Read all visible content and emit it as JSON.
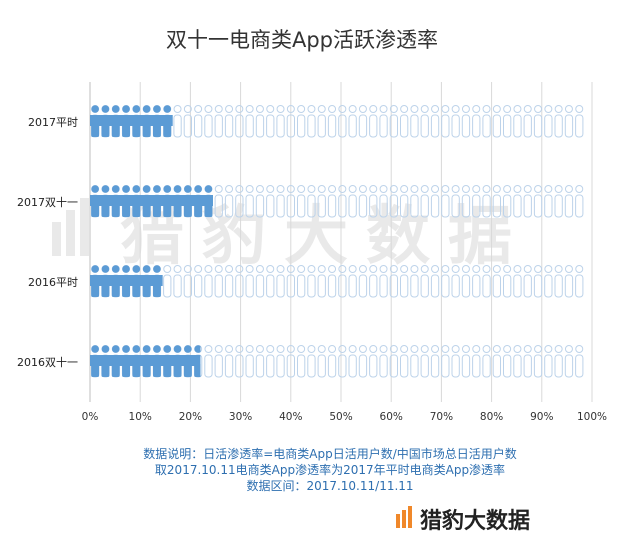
{
  "chart_data": {
    "type": "bar",
    "orientation": "horizontal",
    "title": "双十一电商类App活跃渗透率",
    "categories": [
      "2017平时",
      "2017双十一",
      "2016平时",
      "2016双十一"
    ],
    "values": [
      16.5,
      24.5,
      14.5,
      22.0
    ],
    "value_unit": "%",
    "xlim": [
      0,
      100
    ],
    "x_ticks": [
      "0%",
      "10%",
      "20%",
      "30%",
      "40%",
      "50%",
      "60%",
      "70%",
      "80%",
      "90%",
      "100%"
    ],
    "grid": true,
    "colors": {
      "filled": "#5b9bd5",
      "empty": "#bdd3ea",
      "grid": "#d9d9d9"
    },
    "notes": [
      "数据说明：日活渗透率=电商类App日活用户数/中国市场总日活用户数",
      "取2017.10.11电商类App渗透率为2017年平时电商类App渗透率",
      "数据区间：2017.10.11/11.11"
    ],
    "watermark": "猎豹大数据",
    "brand": "猎豹大数据"
  }
}
